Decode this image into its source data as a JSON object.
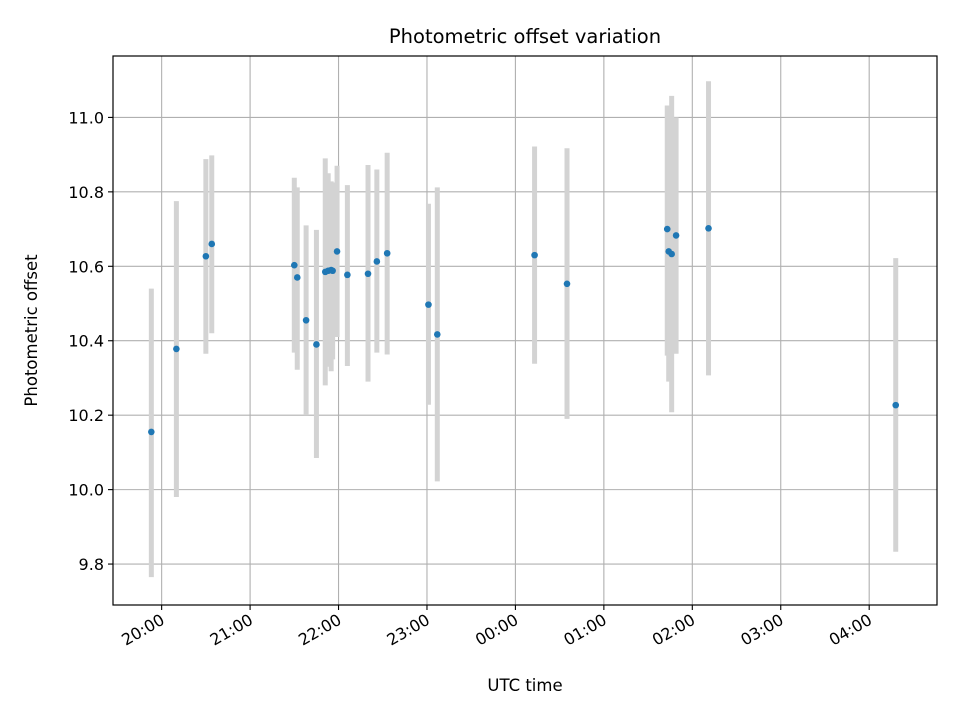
{
  "chart_data": {
    "type": "scatter",
    "title": "Photometric offset variation",
    "xlabel": "UTC time",
    "ylabel": "Photometric offset",
    "x_unit": "hour",
    "xlim": [
      "19:27",
      "04:46"
    ],
    "ylim": [
      9.69,
      11.165
    ],
    "x_ticks": [
      "20:00",
      "21:00",
      "22:00",
      "23:00",
      "00:00",
      "01:00",
      "02:00",
      "03:00",
      "04:00"
    ],
    "y_ticks": [
      "9.8",
      "10.0",
      "10.2",
      "10.4",
      "10.6",
      "10.8",
      "11.0"
    ],
    "grid": true,
    "point_color": "#1f77b4",
    "errorbar_color": "#d3d3d3",
    "points": [
      {
        "t": "19:53",
        "y": 10.155,
        "low": 9.765,
        "high": 10.54
      },
      {
        "t": "20:10",
        "y": 10.378,
        "low": 9.98,
        "high": 10.775
      },
      {
        "t": "20:30",
        "y": 10.627,
        "low": 10.365,
        "high": 10.888
      },
      {
        "t": "20:34",
        "y": 10.66,
        "low": 10.42,
        "high": 10.898
      },
      {
        "t": "21:30",
        "y": 10.603,
        "low": 10.368,
        "high": 10.838
      },
      {
        "t": "21:32",
        "y": 10.57,
        "low": 10.322,
        "high": 10.812
      },
      {
        "t": "21:38",
        "y": 10.455,
        "low": 10.2,
        "high": 10.71
      },
      {
        "t": "21:45",
        "y": 10.39,
        "low": 10.085,
        "high": 10.698
      },
      {
        "t": "21:51",
        "y": 10.585,
        "low": 10.28,
        "high": 10.89
      },
      {
        "t": "21:53",
        "y": 10.588,
        "low": 10.33,
        "high": 10.85
      },
      {
        "t": "21:55",
        "y": 10.59,
        "low": 10.318,
        "high": 10.828
      },
      {
        "t": "21:56",
        "y": 10.588,
        "low": 10.35,
        "high": 10.825
      },
      {
        "t": "21:59",
        "y": 10.64,
        "low": 10.41,
        "high": 10.87
      },
      {
        "t": "22:06",
        "y": 10.577,
        "low": 10.332,
        "high": 10.818
      },
      {
        "t": "22:20",
        "y": 10.58,
        "low": 10.29,
        "high": 10.872
      },
      {
        "t": "22:26",
        "y": 10.613,
        "low": 10.368,
        "high": 10.86
      },
      {
        "t": "22:33",
        "y": 10.635,
        "low": 10.363,
        "high": 10.905
      },
      {
        "t": "23:01",
        "y": 10.497,
        "low": 10.228,
        "high": 10.768
      },
      {
        "t": "23:07",
        "y": 10.417,
        "low": 10.022,
        "high": 10.812
      },
      {
        "t": "00:13",
        "y": 10.63,
        "low": 10.338,
        "high": 10.922
      },
      {
        "t": "00:35",
        "y": 10.553,
        "low": 10.19,
        "high": 10.917
      },
      {
        "t": "01:43",
        "y": 10.7,
        "low": 10.36,
        "high": 11.032
      },
      {
        "t": "01:44",
        "y": 10.64,
        "low": 10.29,
        "high": 11.0
      },
      {
        "t": "01:46",
        "y": 10.633,
        "low": 10.208,
        "high": 11.058
      },
      {
        "t": "01:49",
        "y": 10.683,
        "low": 10.365,
        "high": 11.0
      },
      {
        "t": "02:11",
        "y": 10.702,
        "low": 10.307,
        "high": 11.097
      },
      {
        "t": "04:18",
        "y": 10.227,
        "low": 9.833,
        "high": 10.622
      }
    ]
  }
}
